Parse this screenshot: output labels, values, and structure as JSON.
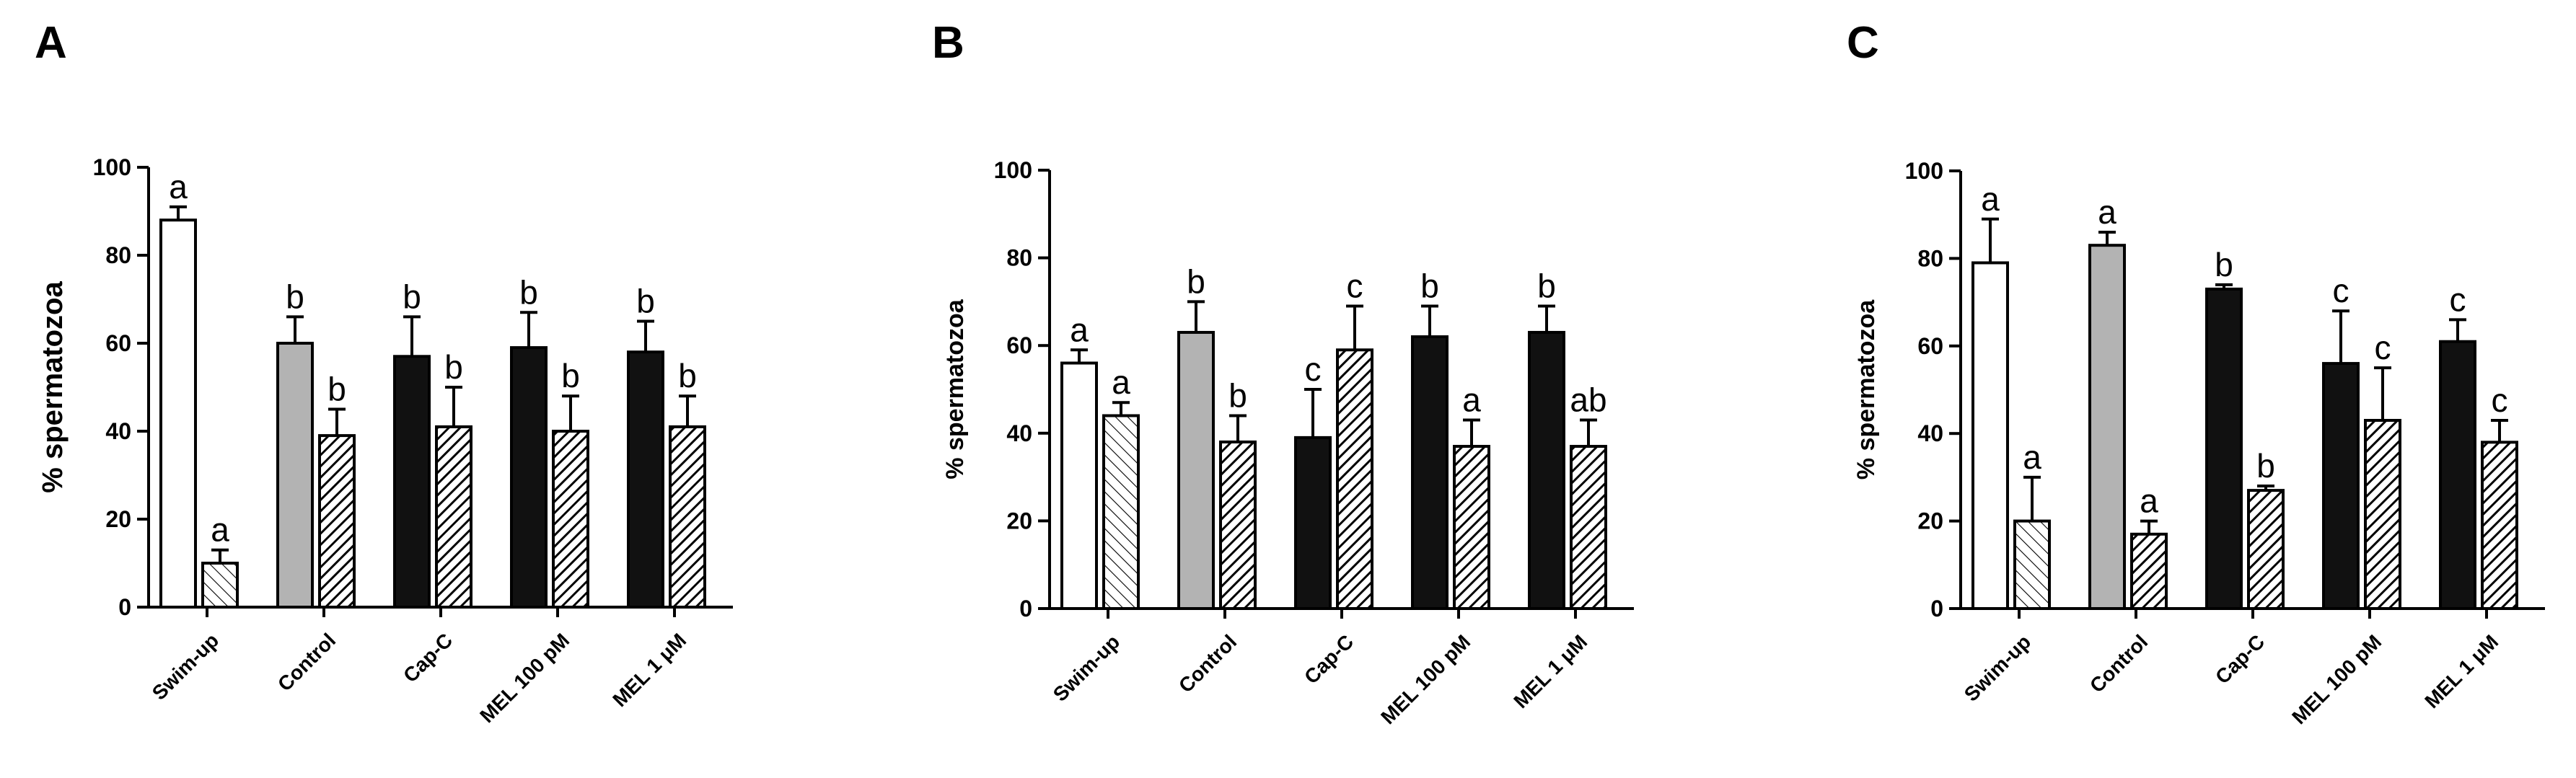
{
  "chart_data": [
    {
      "panel_label": "A",
      "type": "bar",
      "ylabel": "% spermatozoa",
      "ylim": [
        0,
        100
      ],
      "yticks": [
        "0",
        "20",
        "40",
        "60",
        "80",
        "100"
      ],
      "categories": [
        "Swim-up",
        "Control",
        "Cap-C",
        "MEL 100 pM",
        "MEL 1 μM"
      ],
      "series": [
        {
          "values": [
            88,
            60,
            57,
            59,
            58
          ],
          "errors": [
            3,
            6,
            9,
            8,
            7
          ],
          "letters": [
            "a",
            "b",
            "b",
            "b",
            "b"
          ],
          "fills": [
            "open",
            "grey",
            "black",
            "black",
            "black"
          ]
        },
        {
          "values": [
            10,
            39,
            41,
            40,
            41
          ],
          "errors": [
            3,
            6,
            9,
            8,
            7
          ],
          "letters": [
            "a",
            "b",
            "b",
            "b",
            "b"
          ],
          "fills": [
            "hatch-light",
            "hatch-dark",
            "hatch-dark",
            "hatch-dark",
            "hatch-dark"
          ]
        }
      ]
    },
    {
      "panel_label": "B",
      "type": "bar",
      "ylabel": "% spermatozoa",
      "ylim": [
        0,
        100
      ],
      "yticks": [
        "0",
        "20",
        "40",
        "60",
        "80",
        "100"
      ],
      "categories": [
        "Swim-up",
        "Control",
        "Cap-C",
        "MEL 100 pM",
        "MEL 1 μM"
      ],
      "series": [
        {
          "values": [
            56,
            63,
            39,
            62,
            63
          ],
          "errors": [
            3,
            7,
            11,
            7,
            6
          ],
          "letters": [
            "a",
            "b",
            "c",
            "b",
            "b"
          ],
          "fills": [
            "open",
            "grey",
            "black",
            "black",
            "black"
          ]
        },
        {
          "values": [
            44,
            38,
            59,
            37,
            37
          ],
          "errors": [
            3,
            6,
            10,
            6,
            6
          ],
          "letters": [
            "a",
            "b",
            "c",
            "a",
            "ab"
          ],
          "fills": [
            "hatch-light",
            "hatch-dark",
            "hatch-dark",
            "hatch-dark",
            "hatch-dark"
          ]
        }
      ]
    },
    {
      "panel_label": "C",
      "type": "bar",
      "ylabel": "% spermatozoa",
      "ylim": [
        0,
        100
      ],
      "yticks": [
        "0",
        "20",
        "40",
        "60",
        "80",
        "100"
      ],
      "categories": [
        "Swim-up",
        "Control",
        "Cap-C",
        "MEL 100 pM",
        "MEL 1 μM"
      ],
      "series": [
        {
          "values": [
            79,
            83,
            73,
            56,
            61
          ],
          "errors": [
            10,
            3,
            1,
            12,
            5
          ],
          "letters": [
            "a",
            "a",
            "b",
            "c",
            "c"
          ],
          "fills": [
            "open",
            "grey",
            "black",
            "black",
            "black"
          ]
        },
        {
          "values": [
            20,
            17,
            27,
            43,
            38
          ],
          "errors": [
            10,
            3,
            1,
            12,
            5
          ],
          "letters": [
            "a",
            "a",
            "b",
            "c",
            "c"
          ],
          "fills": [
            "hatch-light",
            "hatch-dark",
            "hatch-dark",
            "hatch-dark",
            "hatch-dark"
          ]
        }
      ]
    }
  ],
  "colors": {
    "open": "#ffffff",
    "grey": "#b3b3b3",
    "black": "#111111",
    "axis": "#000000"
  }
}
